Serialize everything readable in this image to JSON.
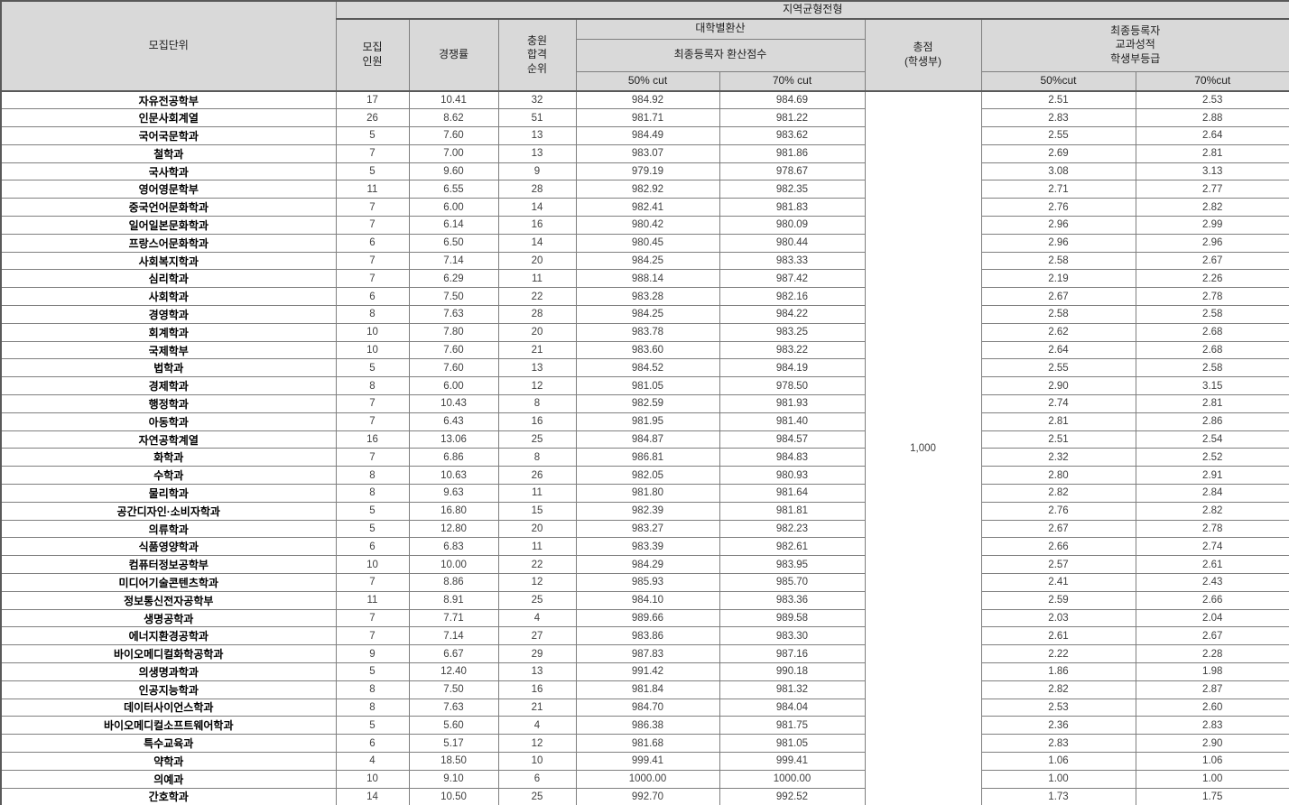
{
  "header": {
    "unit": "모집단위",
    "admission_type": "지역균형전형",
    "quota": "모집\n인원",
    "competition_ratio": "경쟁률",
    "waitlist_rank": "충원\n합격\n순위",
    "conversion_group": "대학별환산",
    "conversion_sub": "최종등록자 환산점수",
    "conv_cut50": "50% cut",
    "conv_cut70": "70% cut",
    "total_score": "총점\n(학생부)",
    "grade_group": "최종등록자\n교과성적\n학생부등급",
    "grade_cut50": "50%cut",
    "grade_cut70": "70%cut"
  },
  "total_score_value": "1,000",
  "colors": {
    "header_bg": "#d9d9d9",
    "border": "#7f7f7f",
    "border_strong": "#595959",
    "unit_text": "#000000",
    "number_text": "#3f3f3f"
  },
  "rows": [
    [
      "자유전공학부",
      "17",
      "10.41",
      "32",
      "984.92",
      "984.69",
      "2.51",
      "2.53"
    ],
    [
      "인문사회계열",
      "26",
      "8.62",
      "51",
      "981.71",
      "981.22",
      "2.83",
      "2.88"
    ],
    [
      "국어국문학과",
      "5",
      "7.60",
      "13",
      "984.49",
      "983.62",
      "2.55",
      "2.64"
    ],
    [
      "철학과",
      "7",
      "7.00",
      "13",
      "983.07",
      "981.86",
      "2.69",
      "2.81"
    ],
    [
      "국사학과",
      "5",
      "9.60",
      "9",
      "979.19",
      "978.67",
      "3.08",
      "3.13"
    ],
    [
      "영어영문학부",
      "11",
      "6.55",
      "28",
      "982.92",
      "982.35",
      "2.71",
      "2.77"
    ],
    [
      "중국언어문화학과",
      "7",
      "6.00",
      "14",
      "982.41",
      "981.83",
      "2.76",
      "2.82"
    ],
    [
      "일어일본문화학과",
      "7",
      "6.14",
      "16",
      "980.42",
      "980.09",
      "2.96",
      "2.99"
    ],
    [
      "프랑스어문화학과",
      "6",
      "6.50",
      "14",
      "980.45",
      "980.44",
      "2.96",
      "2.96"
    ],
    [
      "사회복지학과",
      "7",
      "7.14",
      "20",
      "984.25",
      "983.33",
      "2.58",
      "2.67"
    ],
    [
      "심리학과",
      "7",
      "6.29",
      "11",
      "988.14",
      "987.42",
      "2.19",
      "2.26"
    ],
    [
      "사회학과",
      "6",
      "7.50",
      "22",
      "983.28",
      "982.16",
      "2.67",
      "2.78"
    ],
    [
      "경영학과",
      "8",
      "7.63",
      "28",
      "984.25",
      "984.22",
      "2.58",
      "2.58"
    ],
    [
      "회계학과",
      "10",
      "7.80",
      "20",
      "983.78",
      "983.25",
      "2.62",
      "2.68"
    ],
    [
      "국제학부",
      "10",
      "7.60",
      "21",
      "983.60",
      "983.22",
      "2.64",
      "2.68"
    ],
    [
      "법학과",
      "5",
      "7.60",
      "13",
      "984.52",
      "984.19",
      "2.55",
      "2.58"
    ],
    [
      "경제학과",
      "8",
      "6.00",
      "12",
      "981.05",
      "978.50",
      "2.90",
      "3.15"
    ],
    [
      "행정학과",
      "7",
      "10.43",
      "8",
      "982.59",
      "981.93",
      "2.74",
      "2.81"
    ],
    [
      "아동학과",
      "7",
      "6.43",
      "16",
      "981.95",
      "981.40",
      "2.81",
      "2.86"
    ],
    [
      "자연공학계열",
      "16",
      "13.06",
      "25",
      "984.87",
      "984.57",
      "2.51",
      "2.54"
    ],
    [
      "화학과",
      "7",
      "6.86",
      "8",
      "986.81",
      "984.83",
      "2.32",
      "2.52"
    ],
    [
      "수학과",
      "8",
      "10.63",
      "26",
      "982.05",
      "980.93",
      "2.80",
      "2.91"
    ],
    [
      "물리학과",
      "8",
      "9.63",
      "11",
      "981.80",
      "981.64",
      "2.82",
      "2.84"
    ],
    [
      "공간디자인·소비자학과",
      "5",
      "16.80",
      "15",
      "982.39",
      "981.81",
      "2.76",
      "2.82"
    ],
    [
      "의류학과",
      "5",
      "12.80",
      "20",
      "983.27",
      "982.23",
      "2.67",
      "2.78"
    ],
    [
      "식품영양학과",
      "6",
      "6.83",
      "11",
      "983.39",
      "982.61",
      "2.66",
      "2.74"
    ],
    [
      "컴퓨터정보공학부",
      "10",
      "10.00",
      "22",
      "984.29",
      "983.95",
      "2.57",
      "2.61"
    ],
    [
      "미디어기술콘텐츠학과",
      "7",
      "8.86",
      "12",
      "985.93",
      "985.70",
      "2.41",
      "2.43"
    ],
    [
      "정보통신전자공학부",
      "11",
      "8.91",
      "25",
      "984.10",
      "983.36",
      "2.59",
      "2.66"
    ],
    [
      "생명공학과",
      "7",
      "7.71",
      "4",
      "989.66",
      "989.58",
      "2.03",
      "2.04"
    ],
    [
      "에너지환경공학과",
      "7",
      "7.14",
      "27",
      "983.86",
      "983.30",
      "2.61",
      "2.67"
    ],
    [
      "바이오메디컬화학공학과",
      "9",
      "6.67",
      "29",
      "987.83",
      "987.16",
      "2.22",
      "2.28"
    ],
    [
      "의생명과학과",
      "5",
      "12.40",
      "13",
      "991.42",
      "990.18",
      "1.86",
      "1.98"
    ],
    [
      "인공지능학과",
      "8",
      "7.50",
      "16",
      "981.84",
      "981.32",
      "2.82",
      "2.87"
    ],
    [
      "데이터사이언스학과",
      "8",
      "7.63",
      "21",
      "984.70",
      "984.04",
      "2.53",
      "2.60"
    ],
    [
      "바이오메디컬소프트웨어학과",
      "5",
      "5.60",
      "4",
      "986.38",
      "981.75",
      "2.36",
      "2.83"
    ],
    [
      "특수교육과",
      "6",
      "5.17",
      "12",
      "981.68",
      "981.05",
      "2.83",
      "2.90"
    ],
    [
      "약학과",
      "4",
      "18.50",
      "10",
      "999.41",
      "999.41",
      "1.06",
      "1.06"
    ],
    [
      "의예과",
      "10",
      "9.10",
      "6",
      "1000.00",
      "1000.00",
      "1.00",
      "1.00"
    ],
    [
      "간호학과",
      "14",
      "10.50",
      "25",
      "992.70",
      "992.52",
      "1.73",
      "1.75"
    ]
  ]
}
